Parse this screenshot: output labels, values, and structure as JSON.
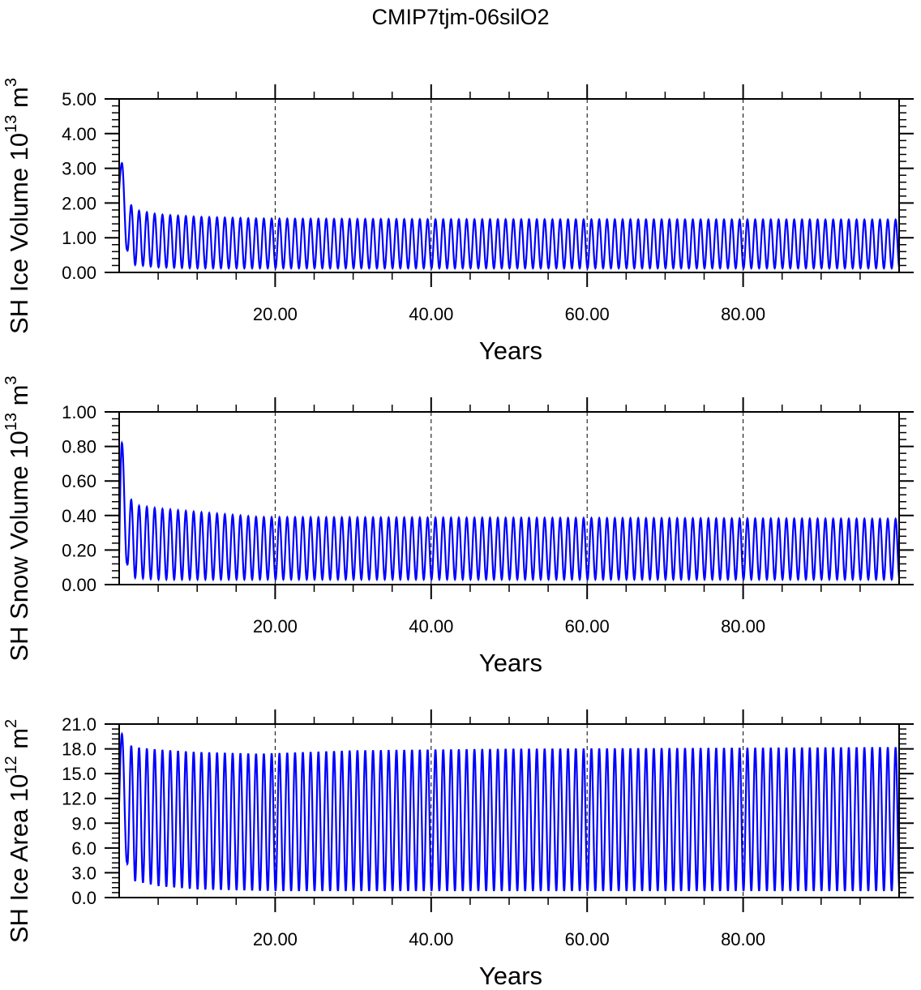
{
  "title": "CMIP7tjm-06silO2",
  "colors": {
    "line": "#0000ff",
    "axis": "#000000"
  },
  "chart_data": [
    {
      "type": "line",
      "ylabel_main": "SH Ice Volume 10",
      "ylabel_exp": "13",
      "ylabel_unit": " m",
      "ylabel_unit_exp": "3",
      "xlabel": "Years",
      "xlim": [
        0,
        100
      ],
      "ylim": [
        0,
        5
      ],
      "yticks": [
        "0.00",
        "1.00",
        "2.00",
        "3.00",
        "4.00",
        "5.00"
      ],
      "xticks": [
        "20.00",
        "40.00",
        "60.00",
        "80.00"
      ],
      "xtick_values": [
        20,
        40,
        60,
        80
      ],
      "grid": "vertical-dashed",
      "series": [
        {
          "signal": "seasonal",
          "first_cycle": {
            "start": 2.4,
            "max": 3.15
          },
          "maxima": [
            [
              0,
              3.15
            ],
            [
              1,
              2.1
            ],
            [
              2,
              1.8
            ],
            [
              5,
              1.67
            ],
            [
              10,
              1.6
            ],
            [
              18,
              1.55
            ],
            [
              40,
              1.53
            ],
            [
              100,
              1.52
            ]
          ],
          "minima": [
            [
              0,
              2.35
            ],
            [
              1,
              0.65
            ],
            [
              2,
              0.22
            ],
            [
              5,
              0.15
            ],
            [
              10,
              0.12
            ],
            [
              100,
              0.12
            ]
          ]
        }
      ]
    },
    {
      "type": "line",
      "ylabel_main": "SH Snow Volume 10",
      "ylabel_exp": "13",
      "ylabel_unit": " m",
      "ylabel_unit_exp": "3",
      "xlabel": "Years",
      "xlim": [
        0,
        100
      ],
      "ylim": [
        0,
        1
      ],
      "yticks": [
        "0.00",
        "0.20",
        "0.40",
        "0.60",
        "0.80",
        "1.00"
      ],
      "xticks": [
        "20.00",
        "40.00",
        "60.00",
        "80.00"
      ],
      "xtick_values": [
        20,
        40,
        60,
        80
      ],
      "grid": "vertical-dashed",
      "series": [
        {
          "signal": "seasonal",
          "first_cycle": {
            "start": 0.18,
            "max": 0.82
          },
          "maxima": [
            [
              0,
              0.82
            ],
            [
              1,
              0.53
            ],
            [
              2,
              0.46
            ],
            [
              5,
              0.44
            ],
            [
              10,
              0.42
            ],
            [
              18,
              0.39
            ],
            [
              100,
              0.38
            ]
          ],
          "minima": [
            [
              0,
              0.18
            ],
            [
              1,
              0.12
            ],
            [
              2,
              0.04
            ],
            [
              5,
              0.03
            ],
            [
              100,
              0.03
            ]
          ]
        }
      ]
    },
    {
      "type": "line",
      "ylabel_main": "SH Ice Area 10",
      "ylabel_exp": "12",
      "ylabel_unit": " m",
      "ylabel_unit_exp": "2",
      "xlabel": "Years",
      "xlim": [
        0,
        100
      ],
      "ylim": [
        0,
        21
      ],
      "yticks": [
        "0.0",
        "3.0",
        "6.0",
        "9.0",
        "12.0",
        "15.0",
        "18.0",
        "21.0"
      ],
      "xticks": [
        "20.00",
        "40.00",
        "60.00",
        "80.00"
      ],
      "xtick_values": [
        20,
        40,
        60,
        80
      ],
      "grid": "vertical-dashed",
      "series": [
        {
          "signal": "seasonal",
          "first_cycle": {
            "start": 11.5,
            "max": 19.8
          },
          "maxima": [
            [
              0,
              19.8
            ],
            [
              1,
              18.6
            ],
            [
              2,
              18.2
            ],
            [
              5,
              17.9
            ],
            [
              10,
              17.6
            ],
            [
              18,
              17.4
            ],
            [
              30,
              17.8
            ],
            [
              50,
              18.0
            ],
            [
              100,
              18.2
            ]
          ],
          "minima": [
            [
              0,
              11.5
            ],
            [
              1,
              4.2
            ],
            [
              2,
              2.0
            ],
            [
              5,
              1.4
            ],
            [
              10,
              1.0
            ],
            [
              20,
              0.8
            ],
            [
              100,
              0.8
            ]
          ]
        }
      ]
    }
  ]
}
